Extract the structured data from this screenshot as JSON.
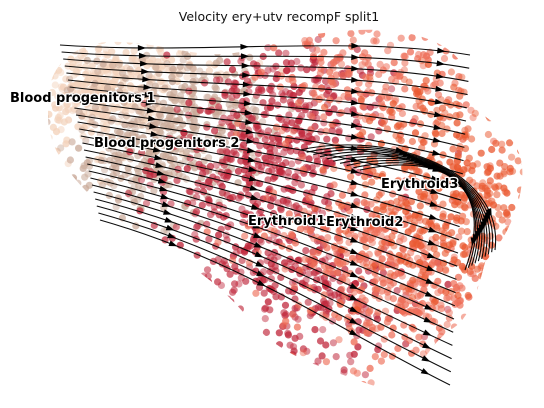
{
  "plot": {
    "title": "Velocity ery+utv recompF split1"
  },
  "clusters": [
    {
      "id": "bp1",
      "label": "Blood progenitors 1",
      "color": "#f3d2bb"
    },
    {
      "id": "bp2",
      "label": "Blood progenitors 2",
      "color": "#c9a998"
    },
    {
      "id": "ery1",
      "label": "Erythroid1",
      "color": "#c0283c"
    },
    {
      "id": "ery2",
      "label": "Erythroid2",
      "color": "#ee6e58"
    },
    {
      "id": "ery3",
      "label": "Erythroid3",
      "color": "#ea5a32"
    }
  ],
  "cluster_label_text": {
    "bp1": "Blood progenitors 1",
    "bp2": "Blood progenitors 2",
    "ery1": "Erythroid1",
    "ery2": "Erythroid2",
    "ery3": "Erythroid3"
  }
}
